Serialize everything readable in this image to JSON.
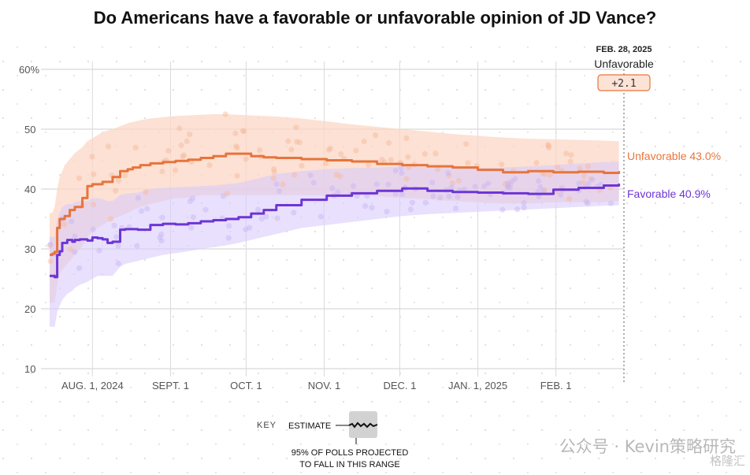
{
  "title": "Do Americans have a favorable or unfavorable opinion of JD Vance?",
  "header": {
    "date": "FEB. 28, 2025",
    "label": "Unfavorable",
    "margin": "+2.1"
  },
  "colors": {
    "unfavorable": "#e8743b",
    "favorable": "#6d35d6",
    "unfav_band": "#fbd7c6",
    "fav_band": "#d9ccfa"
  },
  "key": {
    "title": "KEY",
    "estimate": "ESTIMATE",
    "desc_line1": "95% OF POLLS PROJECTED",
    "desc_line2": "TO FALL IN THIS RANGE"
  },
  "watermark": {
    "text": "公众号 · Kevin策略研究",
    "brand": "格隆汇"
  },
  "chart_data": {
    "type": "line",
    "title": "Do Americans have a favorable or unfavorable opinion of JD Vance?",
    "xlabel": "",
    "ylabel": "",
    "x_range": [
      "2024-07-15",
      "2025-02-28"
    ],
    "ylim": [
      8,
      62
    ],
    "y_ticks": [
      {
        "value": 60,
        "label": "60%"
      },
      {
        "value": 50,
        "label": "50"
      },
      {
        "value": 40,
        "label": "40"
      },
      {
        "value": 30,
        "label": "30"
      },
      {
        "value": 20,
        "label": "20"
      },
      {
        "value": 10,
        "label": "10"
      }
    ],
    "x_ticks": [
      {
        "day": 17,
        "label": "AUG. 1, 2024"
      },
      {
        "day": 48,
        "label": "SEPT. 1"
      },
      {
        "day": 78,
        "label": "OCT. 1"
      },
      {
        "day": 109,
        "label": "NOV. 1"
      },
      {
        "day": 139,
        "label": "DEC. 1"
      },
      {
        "day": 170,
        "label": "JAN. 1, 2025"
      },
      {
        "day": 201,
        "label": "FEB. 1"
      }
    ],
    "series": [
      {
        "name": "Unfavorable",
        "end_label": "Unfavorable 43.0%",
        "end_value": 43.0,
        "x": [
          0,
          1,
          2,
          3,
          4,
          6,
          8,
          10,
          13,
          15,
          17,
          19,
          21,
          25,
          28,
          31,
          33,
          36,
          40,
          45,
          50,
          55,
          60,
          65,
          70,
          75,
          80,
          85,
          90,
          100,
          110,
          120,
          130,
          140,
          150,
          160,
          170,
          180,
          190,
          200,
          210,
          220,
          226
        ],
        "values": [
          29.0,
          29.2,
          29.5,
          33.5,
          35.0,
          35.5,
          36.5,
          37.0,
          38.5,
          40.5,
          40.8,
          40.8,
          41.2,
          42.0,
          43.0,
          43.3,
          43.6,
          44.0,
          44.3,
          44.5,
          44.7,
          44.9,
          45.2,
          45.5,
          45.9,
          45.9,
          45.5,
          45.3,
          45.2,
          45.0,
          44.8,
          44.6,
          44.2,
          44.0,
          43.8,
          43.6,
          43.2,
          42.8,
          43.0,
          42.8,
          42.9,
          42.7,
          43.0
        ],
        "band_lower": [
          21,
          21,
          21,
          24,
          26,
          27,
          28,
          29,
          30.5,
          32,
          33,
          33.5,
          34,
          35,
          35.5,
          36,
          36.5,
          37,
          37.5,
          38,
          38.5,
          38.5,
          39,
          39,
          39,
          39,
          39,
          39,
          39,
          39,
          39,
          39,
          38.8,
          38.5,
          38.3,
          38,
          37.8,
          37.6,
          37.6,
          37.8,
          37.8,
          37.8,
          38
        ],
        "band_upper": [
          36,
          36,
          37,
          40,
          42,
          44,
          45,
          46,
          47,
          48,
          48.5,
          49,
          49.5,
          50,
          50.5,
          51,
          51.2,
          51.5,
          51.8,
          52,
          52.2,
          52.3,
          52.4,
          52.5,
          52.5,
          52.4,
          52.3,
          52.2,
          52.1,
          51.8,
          51.3,
          50.8,
          50.4,
          50.0,
          49.6,
          49.2,
          48.9,
          48.6,
          48.4,
          48.3,
          48.2,
          48.1,
          48.0
        ]
      },
      {
        "name": "Favorable",
        "end_label": "Favorable 40.9%",
        "end_value": 40.9,
        "x": [
          0,
          2,
          3,
          4,
          5,
          7,
          9,
          10,
          12,
          15,
          17,
          19,
          21,
          23,
          25,
          28,
          30,
          35,
          40,
          45,
          50,
          55,
          60,
          65,
          70,
          75,
          80,
          85,
          90,
          100,
          110,
          120,
          130,
          140,
          150,
          160,
          170,
          180,
          190,
          200,
          210,
          220,
          226
        ],
        "values": [
          25.5,
          25.3,
          29.0,
          29.6,
          31.0,
          31.5,
          31.2,
          31.5,
          31.6,
          31.4,
          31.9,
          31.8,
          31.6,
          31.0,
          31.2,
          33.2,
          33.3,
          33.2,
          34.0,
          34.2,
          34.1,
          34.3,
          34.6,
          34.8,
          35.0,
          35.3,
          35.9,
          36.5,
          37.3,
          38.2,
          38.9,
          39.3,
          39.7,
          40.1,
          39.7,
          39.5,
          39.4,
          39.3,
          39.2,
          39.9,
          40.2,
          40.6,
          40.9
        ],
        "band_lower": [
          17,
          17,
          19.5,
          20.5,
          21.5,
          22.5,
          23,
          23.5,
          24,
          24.5,
          25,
          25.5,
          25.5,
          25.5,
          25.5,
          27,
          27.5,
          28,
          28.5,
          29,
          29.3,
          29.6,
          30,
          30.3,
          30.6,
          31,
          31.5,
          32,
          32.5,
          33.5,
          34,
          34.5,
          35,
          35.5,
          35.8,
          36,
          36.2,
          36.4,
          36.6,
          36.8,
          37,
          37.2,
          37.3
        ],
        "band_upper": [
          32,
          32,
          35,
          36,
          37,
          37.5,
          37.5,
          37.8,
          38,
          38,
          38.5,
          38.5,
          38.3,
          38,
          38,
          39,
          39.2,
          39.4,
          40,
          40.2,
          40.3,
          40.4,
          40.5,
          40.6,
          40.8,
          41,
          41.5,
          42,
          42.5,
          43,
          43.3,
          43.5,
          43.6,
          43.8,
          43.7,
          43.6,
          43.5,
          43.6,
          43.8,
          44,
          44.3,
          44.5,
          44.6
        ]
      }
    ]
  }
}
